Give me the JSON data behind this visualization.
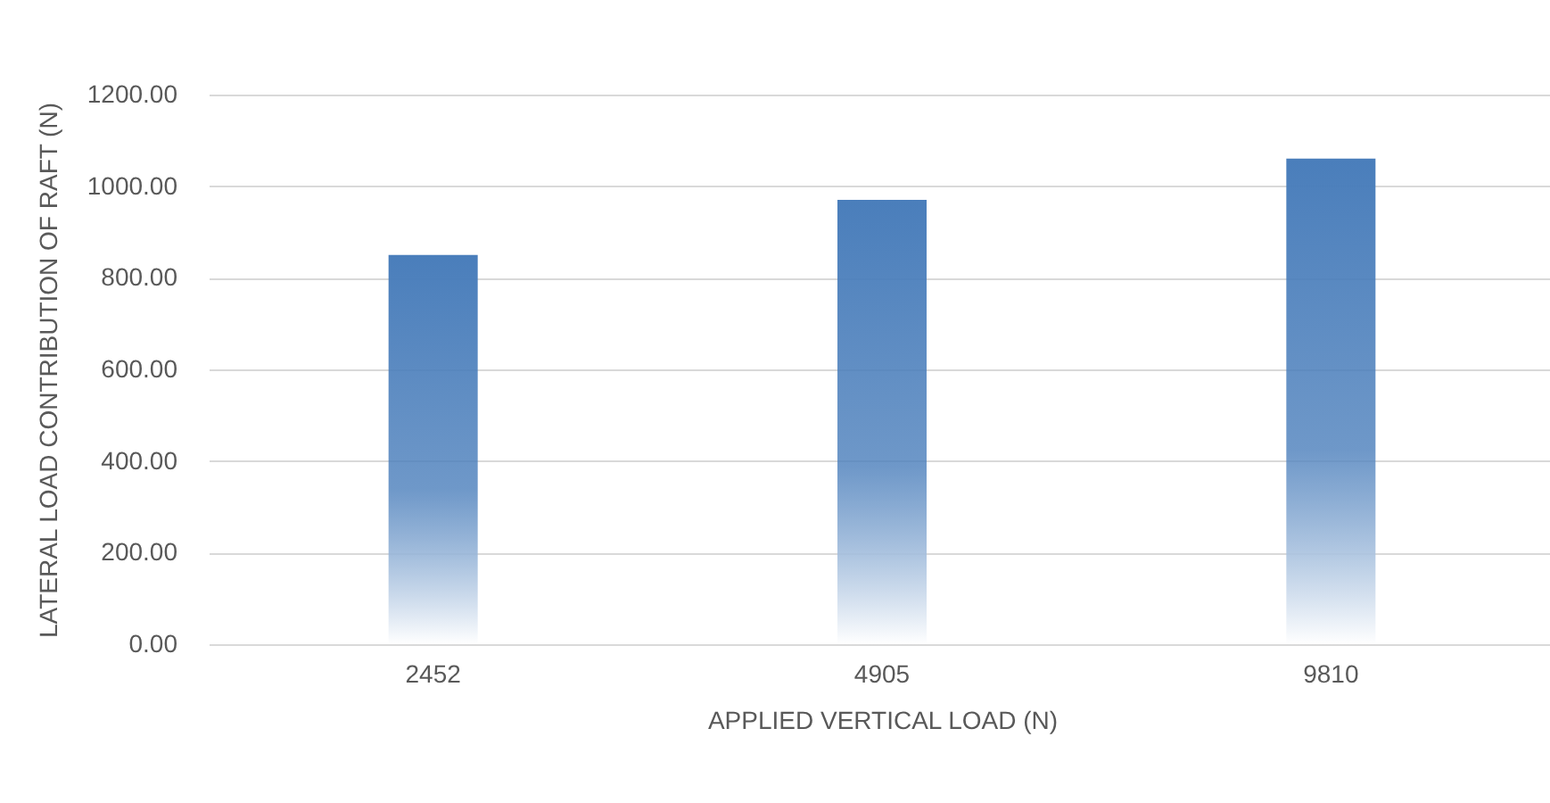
{
  "chart_data": {
    "type": "bar",
    "xlabel": "APPLIED VERTICAL LOAD (N)",
    "ylabel": "LATERAL LOAD CONTRIBUTION OF RAFT (N)",
    "categories": [
      "2452",
      "4905",
      "9810"
    ],
    "values": [
      850,
      970,
      1060
    ],
    "color": "#4a7ebb",
    "ylim": [
      0,
      1200
    ],
    "yticks": [
      {
        "value": 0,
        "label": "0.00"
      },
      {
        "value": 200,
        "label": "200.00"
      },
      {
        "value": 400,
        "label": "400.00"
      },
      {
        "value": 600,
        "label": "600.00"
      },
      {
        "value": 800,
        "label": "800.00"
      },
      {
        "value": 1000,
        "label": "1000.00"
      },
      {
        "value": 1200,
        "label": "1200.00"
      }
    ],
    "grid": "y"
  }
}
